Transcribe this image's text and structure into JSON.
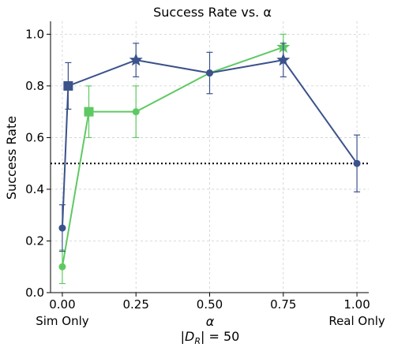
{
  "chart_data": {
    "type": "line",
    "title": "Success Rate vs. α",
    "ylabel": "Success Rate",
    "xlabel_parts": {
      "alpha": "α",
      "dataset_prefix": "|",
      "dataset_symbol": "D",
      "dataset_subscript": "R",
      "dataset_suffix": "| = 50"
    },
    "xlim": [
      -0.04,
      1.04
    ],
    "ylim": [
      0.0,
      1.05
    ],
    "x_ticks": [
      {
        "value": 0.0,
        "label": "0.00",
        "sublabel": "Sim Only"
      },
      {
        "value": 0.25,
        "label": "0.25",
        "sublabel": ""
      },
      {
        "value": 0.5,
        "label": "0.50",
        "sublabel": ""
      },
      {
        "value": 0.75,
        "label": "0.75",
        "sublabel": ""
      },
      {
        "value": 1.0,
        "label": "1.00",
        "sublabel": "Real Only"
      }
    ],
    "y_ticks": [
      {
        "value": 0.0,
        "label": "0.0"
      },
      {
        "value": 0.2,
        "label": "0.2"
      },
      {
        "value": 0.4,
        "label": "0.4"
      },
      {
        "value": 0.6,
        "label": "0.6"
      },
      {
        "value": 0.8,
        "label": "0.8"
      },
      {
        "value": 1.0,
        "label": "1.0"
      }
    ],
    "grid": true,
    "reference_line": {
      "y": 0.5,
      "style": "dotted",
      "color": "#000000"
    },
    "series": [
      {
        "color": "#3b528b",
        "points": [
          {
            "x": 0.0,
            "y": 0.25,
            "err": 0.09,
            "marker": "circle"
          },
          {
            "x": 0.02,
            "y": 0.8,
            "err": 0.09,
            "marker": "square"
          },
          {
            "x": 0.25,
            "y": 0.9,
            "err": 0.065,
            "marker": "star"
          },
          {
            "x": 0.5,
            "y": 0.85,
            "err": 0.08,
            "marker": "circle"
          },
          {
            "x": 0.75,
            "y": 0.9,
            "err": 0.065,
            "marker": "star"
          },
          {
            "x": 1.0,
            "y": 0.5,
            "err": 0.11,
            "marker": "circle"
          }
        ]
      },
      {
        "color": "#5ec962",
        "points": [
          {
            "x": 0.0,
            "y": 0.1,
            "err": 0.065,
            "marker": "circle"
          },
          {
            "x": 0.09,
            "y": 0.7,
            "err": 0.1,
            "marker": "square"
          },
          {
            "x": 0.25,
            "y": 0.7,
            "err": 0.1,
            "marker": "circle"
          },
          {
            "x": 0.5,
            "y": 0.85,
            "err": 0.0,
            "marker": "circle"
          },
          {
            "x": 0.75,
            "y": 0.95,
            "err": 0.05,
            "marker": "star"
          }
        ]
      }
    ]
  }
}
